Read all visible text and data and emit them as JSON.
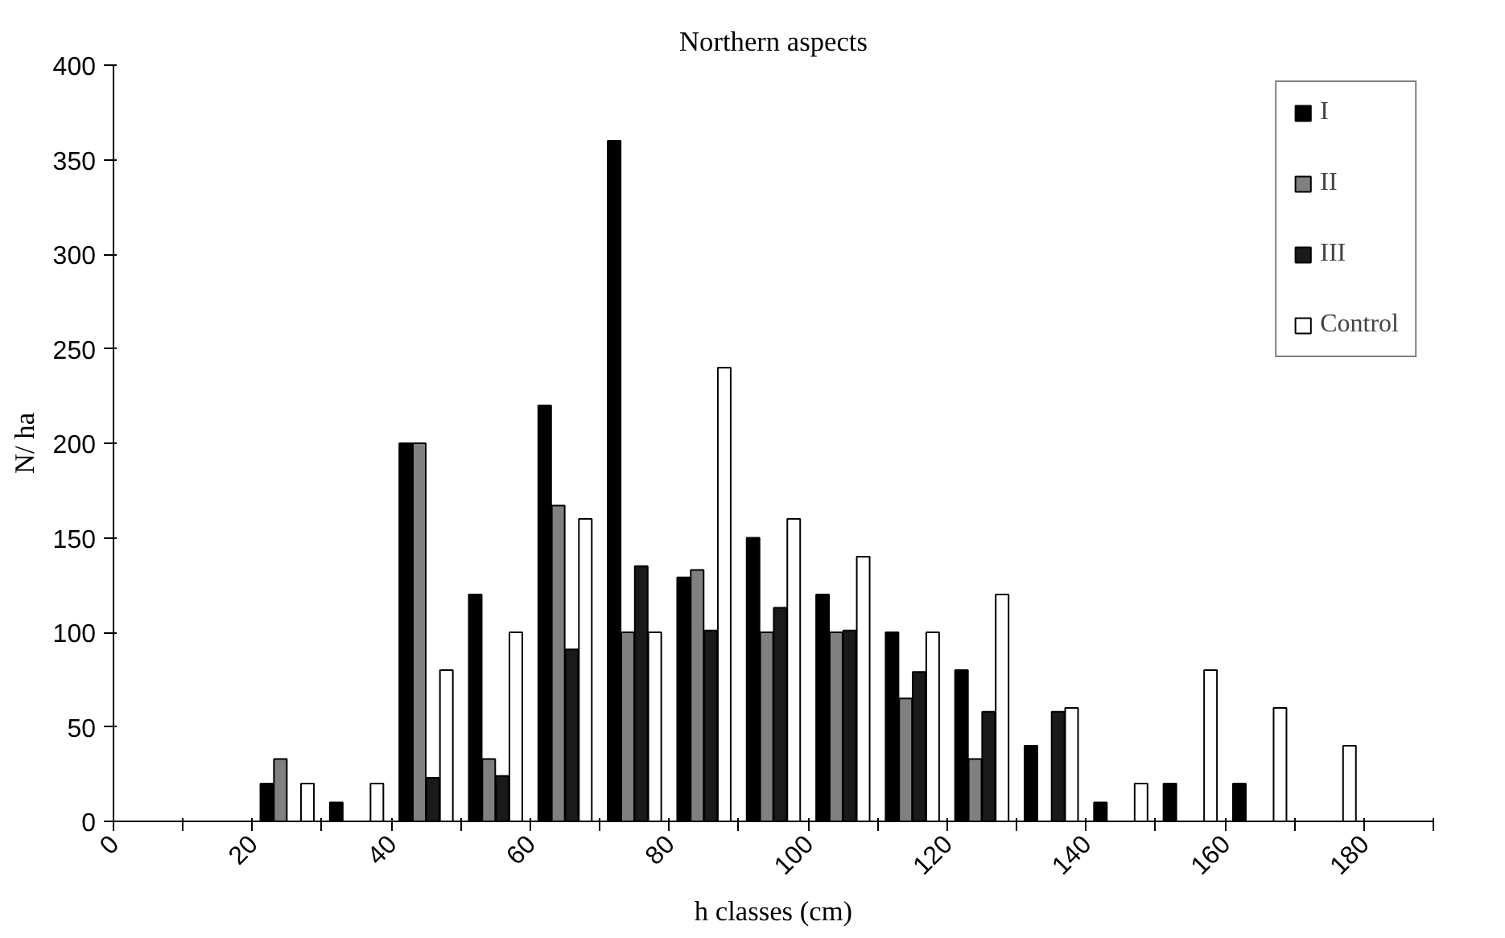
{
  "chart_data": {
    "type": "bar",
    "title": "Northern aspects",
    "xlabel": "h classes (cm)",
    "ylabel": "N/ ha",
    "x": [
      25,
      35,
      45,
      55,
      65,
      75,
      85,
      95,
      105,
      115,
      125,
      135,
      145,
      155,
      165,
      175
    ],
    "series": [
      {
        "name": "I",
        "color": "#000000",
        "values": [
          20,
          10,
          200,
          120,
          220,
          360,
          129,
          150,
          120,
          100,
          80,
          40,
          10,
          20,
          20,
          null
        ]
      },
      {
        "name": "II",
        "color": "#808080",
        "values": [
          33,
          null,
          200,
          33,
          167,
          100,
          133,
          100,
          100,
          65,
          33,
          null,
          null,
          null,
          null,
          null
        ]
      },
      {
        "name": "III",
        "color": "#1a1a1a",
        "values": [
          null,
          null,
          23,
          24,
          91,
          135,
          101,
          113,
          101,
          79,
          58,
          58,
          null,
          null,
          null,
          null
        ]
      },
      {
        "name": "Control",
        "color": "#ffffff",
        "values": [
          20,
          20,
          80,
          100,
          160,
          100,
          240,
          160,
          140,
          100,
          120,
          60,
          20,
          80,
          60,
          40
        ]
      }
    ],
    "xlim": [
      0,
      190
    ],
    "xticks": [
      0,
      {
        "value": 10,
        "label": null
      },
      20,
      {
        "value": 30,
        "label": null
      },
      40,
      {
        "value": 50,
        "label": null
      },
      60,
      {
        "value": 70,
        "label": null
      },
      80,
      {
        "value": 90,
        "label": null
      },
      100,
      {
        "value": 110,
        "label": null
      },
      120,
      {
        "value": 130,
        "label": null
      },
      140,
      {
        "value": 150,
        "label": null
      },
      160,
      {
        "value": 170,
        "label": null
      },
      180,
      {
        "value": 190,
        "label": null
      }
    ],
    "ylim": [
      0,
      400
    ],
    "yticks": [
      0,
      50,
      100,
      150,
      200,
      250,
      300,
      350,
      400
    ],
    "grid": false,
    "legend": "top right"
  }
}
